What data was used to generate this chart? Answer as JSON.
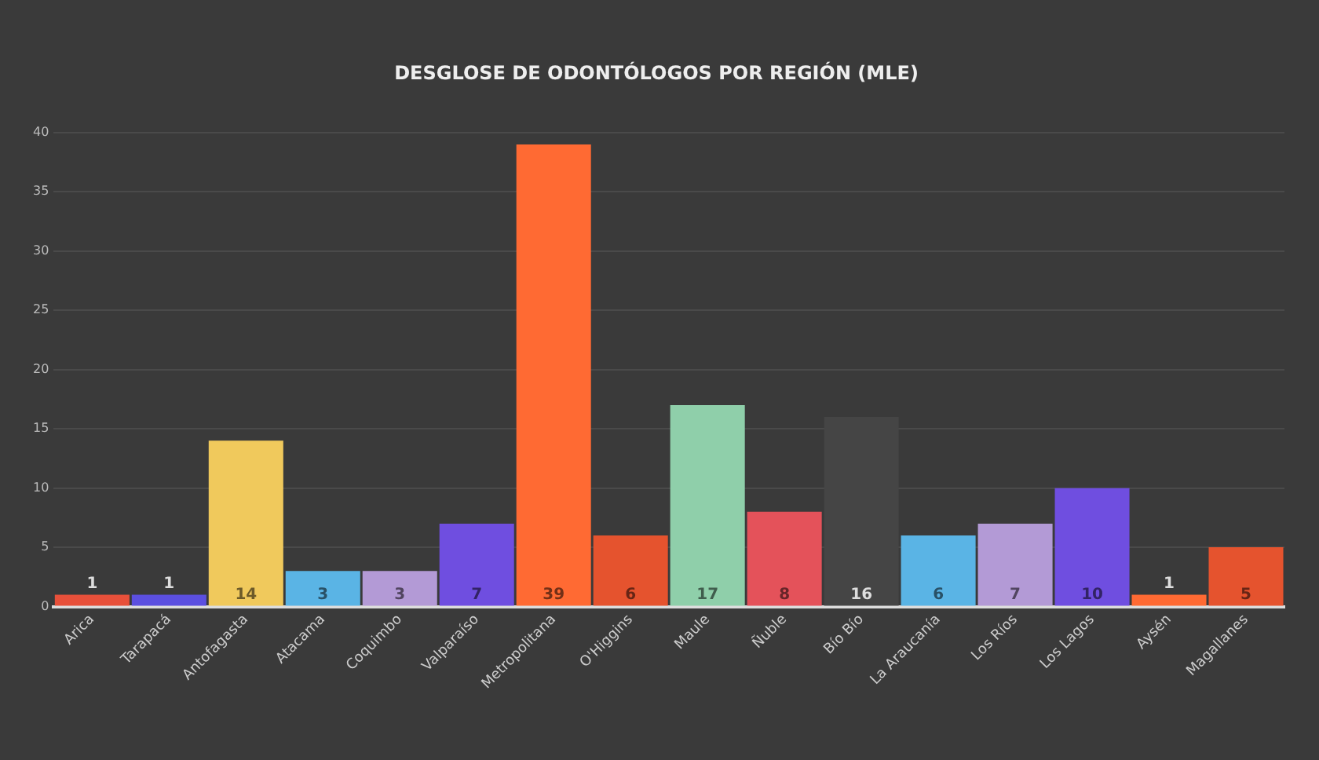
{
  "chart_data": {
    "type": "bar",
    "title": "DESGLOSE DE ODONTÓLOGOS POR REGIÓN (MLE)",
    "categories": [
      "Arica",
      "Tarapacá",
      "Antofagasta",
      "Atacama",
      "Coquimbo",
      "Valparaíso",
      "Metropolitana",
      "O'Higgins",
      "Maule",
      "Ñuble",
      "Bío Bío",
      "La Araucanía",
      "Los Ríos",
      "Los Lagos",
      "Aysén",
      "Magallanes"
    ],
    "values": [
      1,
      1,
      14,
      3,
      3,
      7,
      39,
      6,
      17,
      8,
      16,
      6,
      7,
      10,
      1,
      5
    ],
    "colors": [
      "#e8503a",
      "#5b4fe0",
      "#f0c95c",
      "#5ab4e5",
      "#b39ad6",
      "#6f4ee0",
      "#ff6a33",
      "#e5532e",
      "#8fcfaa",
      "#e4525a",
      "#454545",
      "#5ab4e5",
      "#b39ad6",
      "#6f4ee0",
      "#ff6a33",
      "#e5532e"
    ],
    "ylim": [
      0,
      40
    ],
    "yticks": [
      0,
      5,
      10,
      15,
      20,
      25,
      30,
      35,
      40
    ],
    "grid": "y",
    "legend": false,
    "data_labels": true
  }
}
